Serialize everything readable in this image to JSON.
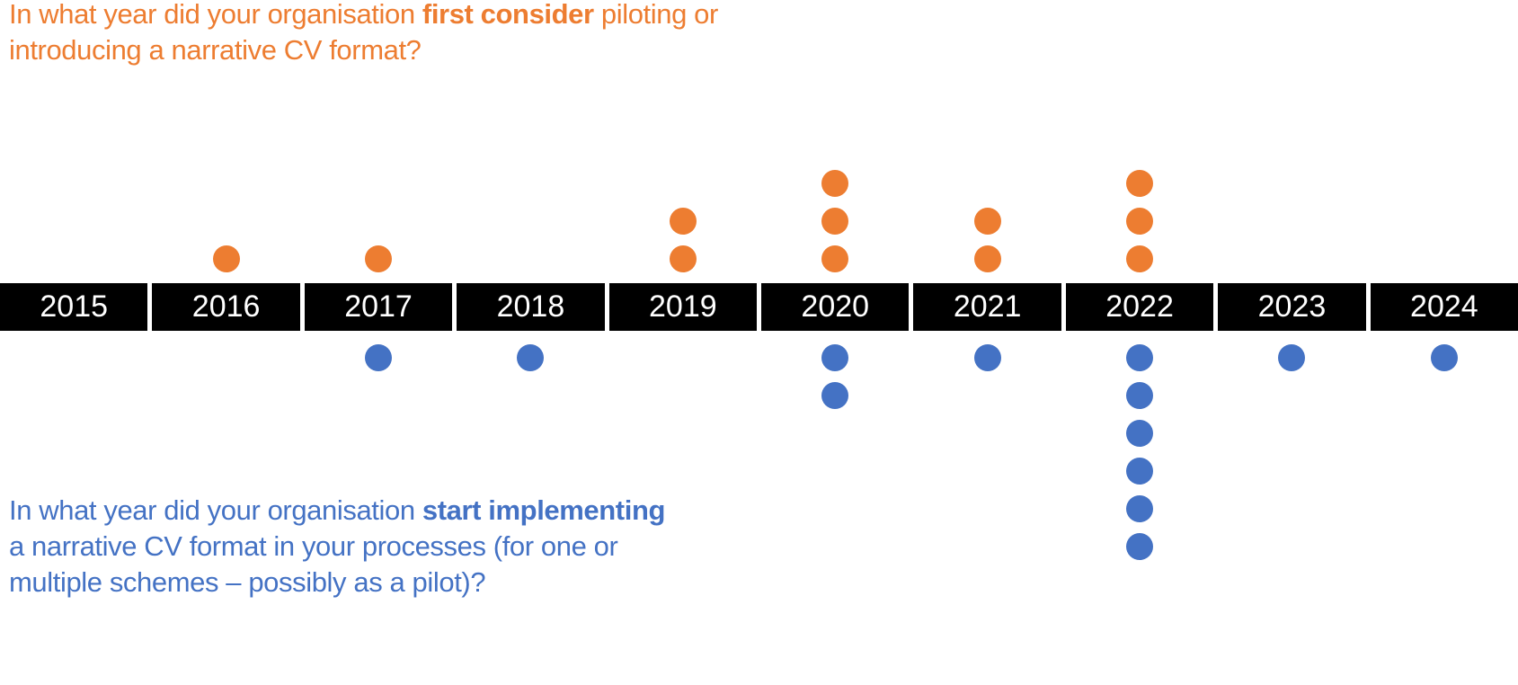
{
  "questions": {
    "consider": {
      "segments": [
        {
          "text": "In what year did your organisation ",
          "bold": false
        },
        {
          "text": "first consider",
          "bold": true
        },
        {
          "text": " piloting or introducing a narrative CV format?",
          "bold": false
        }
      ]
    },
    "implement": {
      "segments": [
        {
          "text": "In what year did your organisation ",
          "bold": false
        },
        {
          "text": "start implementing",
          "bold": true
        },
        {
          "text": " a narrative CV format in your processes (for one or multiple schemes – possibly as a pilot)?",
          "bold": false
        }
      ]
    }
  },
  "colors": {
    "consider": "#ED7D31",
    "implement": "#4472C4",
    "axis_bar": "#000000",
    "axis_text": "#FFFFFF",
    "background": "#FFFFFF"
  },
  "chart_data": {
    "type": "scatter",
    "subtype": "dot-plot-timeline",
    "title": "",
    "categories": [
      "2015",
      "2016",
      "2017",
      "2018",
      "2019",
      "2020",
      "2021",
      "2022",
      "2023",
      "2024"
    ],
    "series": [
      {
        "name": "In what year did your organisation first consider piloting or introducing a narrative CV format?",
        "position": "above-axis",
        "color": "#ED7D31",
        "values": [
          0,
          1,
          1,
          0,
          2,
          3,
          2,
          3,
          0,
          0
        ]
      },
      {
        "name": "In what year did your organisation start implementing a narrative CV format in your processes (for one or multiple schemes – possibly as a pilot)?",
        "position": "below-axis",
        "color": "#4472C4",
        "values": [
          0,
          0,
          1,
          1,
          0,
          2,
          1,
          6,
          1,
          1
        ]
      }
    ],
    "legend_position": "none",
    "grid": false,
    "axis": {
      "orientation": "horizontal",
      "style": "black-band-with-white-year-labels"
    }
  }
}
